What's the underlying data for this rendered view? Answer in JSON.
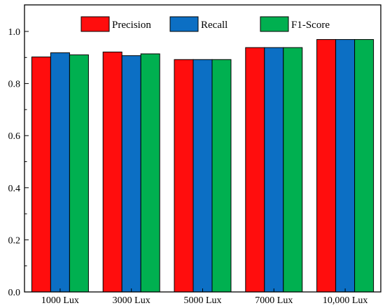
{
  "chart_data": {
    "type": "bar",
    "categories": [
      "1000 Lux",
      "3000 Lux",
      "5000 Lux",
      "7000 Lux",
      "10,000 Lux"
    ],
    "series": [
      {
        "name": "Precision",
        "color": "#ff0d0d",
        "values": [
          0.902,
          0.921,
          0.892,
          0.938,
          0.969
        ]
      },
      {
        "name": "Recall",
        "color": "#0c6fc4",
        "values": [
          0.918,
          0.907,
          0.892,
          0.938,
          0.969
        ]
      },
      {
        "name": "F1-Score",
        "color": "#00b050",
        "values": [
          0.91,
          0.914,
          0.892,
          0.938,
          0.969
        ]
      }
    ],
    "title": "",
    "xlabel": "",
    "ylabel": "",
    "ylim": [
      0.0,
      1.0
    ],
    "yticks": [
      "0.0",
      "0.2",
      "0.4",
      "0.6",
      "0.8",
      "1.0"
    ],
    "grid": false,
    "legend_position": "top"
  }
}
